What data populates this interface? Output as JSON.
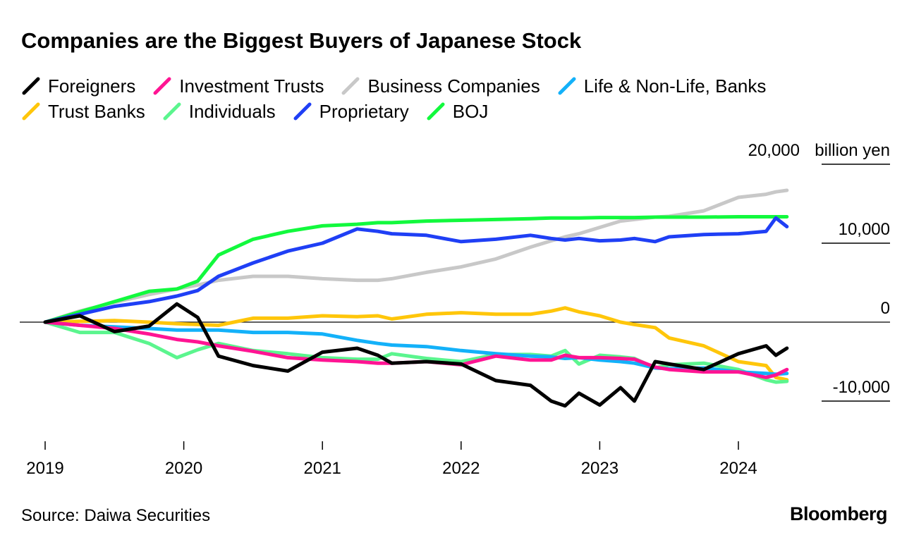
{
  "title": "Companies are the Biggest Buyers of Japanese Stock",
  "source": "Source: Daiwa Securities",
  "brand": "Bloomberg",
  "legend_rows": [
    [
      "Foreigners",
      "Investment Trusts",
      "Business Companies",
      "Life & Non-Life, Banks"
    ],
    [
      "Trust Banks",
      "Individuals",
      "Proprietary",
      "BOJ"
    ]
  ],
  "chart_data": {
    "type": "line",
    "title": "Companies are the Biggest Buyers of Japanese Stock",
    "ylabel": "billion yen",
    "y_unit_label": "billion yen",
    "ylim": [
      -15000,
      20000
    ],
    "xlim": [
      2019.0,
      2024.45
    ],
    "y_ticks": [
      20000,
      10000,
      0,
      -10000
    ],
    "y_tick_labels": [
      "20,000",
      "10,000",
      "0",
      "-10,000"
    ],
    "x_ticks": [
      2019,
      2020,
      2021,
      2022,
      2023,
      2024
    ],
    "x_tick_labels": [
      "2019",
      "2020",
      "2021",
      "2022",
      "2023",
      "2024"
    ],
    "x": [
      2019.0,
      2019.25,
      2019.5,
      2019.75,
      2019.95,
      2020.1,
      2020.25,
      2020.5,
      2020.75,
      2021.0,
      2021.25,
      2021.4,
      2021.5,
      2021.75,
      2022.0,
      2022.25,
      2022.5,
      2022.65,
      2022.75,
      2022.85,
      2023.0,
      2023.15,
      2023.25,
      2023.4,
      2023.5,
      2023.75,
      2024.0,
      2024.2,
      2024.27,
      2024.35
    ],
    "series": [
      {
        "name": "Foreigners",
        "color": "#000000",
        "values": [
          0,
          800,
          -1200,
          -500,
          2300,
          600,
          -4300,
          -5500,
          -6200,
          -3800,
          -3300,
          -4200,
          -5200,
          -5000,
          -5300,
          -7400,
          -8000,
          -10000,
          -10600,
          -9000,
          -10500,
          -8300,
          -10000,
          -5000,
          -5300,
          -6000,
          -4000,
          -3000,
          -4200,
          -3300
        ]
      },
      {
        "name": "Investment Trusts",
        "color": "#ff1493",
        "values": [
          0,
          -400,
          -800,
          -1500,
          -2200,
          -2500,
          -3000,
          -3700,
          -4500,
          -4800,
          -5000,
          -5200,
          -5200,
          -5000,
          -5400,
          -4300,
          -4800,
          -4800,
          -4200,
          -4500,
          -4500,
          -4600,
          -4700,
          -5700,
          -6000,
          -6300,
          -6300,
          -7000,
          -6700,
          -6000
        ]
      },
      {
        "name": "Business Companies",
        "color": "#c8c8c8",
        "values": [
          0,
          1400,
          2500,
          3500,
          4200,
          4700,
          5300,
          5800,
          5800,
          5500,
          5300,
          5300,
          5500,
          6300,
          7000,
          8000,
          9500,
          10300,
          10800,
          11200,
          12000,
          12800,
          13000,
          13300,
          13400,
          14100,
          15800,
          16200,
          16500,
          16700
        ]
      },
      {
        "name": "Life & Non-Life, Banks",
        "color": "#13b1f9",
        "values": [
          0,
          -400,
          -600,
          -800,
          -1000,
          -1000,
          -1000,
          -1300,
          -1300,
          -1500,
          -2300,
          -2700,
          -2900,
          -3100,
          -3600,
          -4000,
          -4300,
          -4400,
          -4600,
          -4500,
          -4800,
          -5000,
          -5200,
          -5800,
          -5900,
          -5800,
          -6300,
          -6500,
          -6600,
          -6500
        ]
      },
      {
        "name": "Trust Banks",
        "color": "#ffc60a",
        "values": [
          0,
          100,
          200,
          0,
          -200,
          -300,
          -400,
          500,
          500,
          800,
          700,
          800,
          400,
          1000,
          1200,
          1000,
          1000,
          1400,
          1800,
          1300,
          800,
          0,
          -300,
          -700,
          -2000,
          -3000,
          -5000,
          -5500,
          -7000,
          -7300
        ]
      },
      {
        "name": "Individuals",
        "color": "#5bf58e",
        "values": [
          0,
          -1300,
          -1300,
          -2700,
          -4500,
          -3500,
          -2700,
          -3600,
          -4000,
          -4500,
          -4700,
          -4700,
          -4000,
          -4600,
          -5000,
          -4100,
          -4100,
          -4300,
          -3600,
          -5300,
          -4200,
          -4400,
          -4600,
          -5800,
          -5400,
          -5200,
          -6000,
          -7300,
          -7600,
          -7500
        ]
      },
      {
        "name": "Proprietary",
        "color": "#1f3ff5",
        "values": [
          0,
          1000,
          2000,
          2600,
          3300,
          4000,
          5800,
          7500,
          9000,
          10000,
          11800,
          11500,
          11200,
          11000,
          10200,
          10500,
          11000,
          10600,
          10400,
          10600,
          10300,
          10400,
          10600,
          10200,
          10800,
          11100,
          11200,
          11500,
          13200,
          12100
        ]
      },
      {
        "name": "BOJ",
        "color": "#12f93d",
        "values": [
          0,
          1300,
          2600,
          3900,
          4200,
          5200,
          8500,
          10500,
          11500,
          12200,
          12400,
          12600,
          12600,
          12800,
          12900,
          13000,
          13100,
          13200,
          13200,
          13200,
          13250,
          13250,
          13250,
          13300,
          13300,
          13300,
          13350,
          13350,
          13350,
          13350
        ]
      }
    ]
  }
}
